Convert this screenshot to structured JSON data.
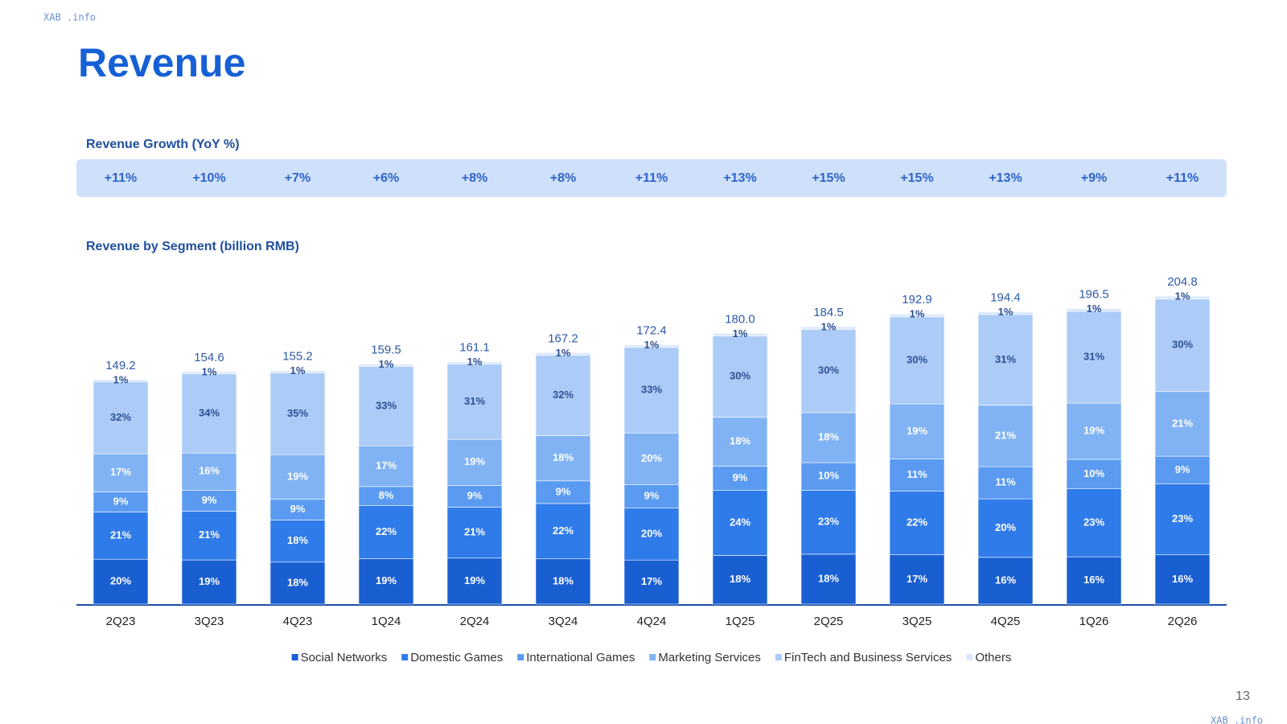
{
  "watermark": "XAB .info",
  "title": "Revenue",
  "page_number": "13",
  "growth": {
    "title": "Revenue Growth (YoY %)",
    "values": [
      "+11%",
      "+10%",
      "+7%",
      "+6%",
      "+8%",
      "+8%",
      "+11%",
      "+13%",
      "+15%",
      "+15%",
      "+13%",
      "+9%",
      "+11%"
    ]
  },
  "chart_data": {
    "type": "stacked_bar",
    "title": "Revenue by Segment (billion RMB)",
    "categories": [
      "2Q23",
      "3Q23",
      "4Q23",
      "1Q24",
      "2Q24",
      "3Q24",
      "4Q24",
      "1Q25",
      "2Q25",
      "3Q25",
      "4Q25",
      "1Q26",
      "2Q26"
    ],
    "totals": {
      "values": [
        149.2,
        154.6,
        155.2,
        159.5,
        161.1,
        167.2,
        172.4,
        180.0,
        184.5,
        192.9,
        194.4,
        196.5,
        204.8
      ],
      "value_labels": [
        "149.2",
        "154.6",
        "155.2",
        "159.5",
        "161.1",
        "167.2",
        "172.4",
        "180.0",
        "184.5",
        "192.9",
        "194.4",
        "196.5",
        "204.8"
      ]
    },
    "series": [
      {
        "name": "Social Networks",
        "color": "#1a5fd2",
        "values": [
          20,
          19,
          18,
          19,
          19,
          18,
          17,
          18,
          18,
          17,
          16,
          16,
          16
        ],
        "value_labels": [
          "20%",
          "19%",
          "18%",
          "19%",
          "19%",
          "18%",
          "17%",
          "18%",
          "18%",
          "17%",
          "16%",
          "16%",
          "16%"
        ]
      },
      {
        "name": "Domestic Games",
        "color": "#2f7be9",
        "values": [
          21,
          21,
          18,
          22,
          21,
          22,
          20,
          24,
          23,
          22,
          20,
          23,
          23
        ],
        "value_labels": [
          "21%",
          "21%",
          "18%",
          "22%",
          "21%",
          "22%",
          "20%",
          "24%",
          "23%",
          "22%",
          "20%",
          "23%",
          "23%"
        ]
      },
      {
        "name": "International Games",
        "color": "#5a9bf1",
        "values": [
          9,
          9,
          9,
          8,
          9,
          9,
          9,
          9,
          10,
          11,
          11,
          10,
          9
        ],
        "value_labels": [
          "9%",
          "9%",
          "9%",
          "8%",
          "9%",
          "9%",
          "9%",
          "9%",
          "10%",
          "11%",
          "11%",
          "10%",
          "9%"
        ]
      },
      {
        "name": "Marketing Services",
        "color": "#81b3f4",
        "values": [
          17,
          16,
          19,
          17,
          19,
          18,
          20,
          18,
          18,
          19,
          21,
          19,
          21
        ],
        "value_labels": [
          "17%",
          "16%",
          "19%",
          "17%",
          "19%",
          "18%",
          "20%",
          "18%",
          "18%",
          "19%",
          "21%",
          "19%",
          "21%"
        ]
      },
      {
        "name": "FinTech and Business Services",
        "color": "#acccf7",
        "values": [
          32,
          34,
          35,
          33,
          31,
          32,
          33,
          30,
          30,
          30,
          31,
          31,
          30
        ],
        "value_labels": [
          "32%",
          "34%",
          "35%",
          "33%",
          "31%",
          "32%",
          "33%",
          "30%",
          "30%",
          "30%",
          "31%",
          "31%",
          "30%"
        ]
      },
      {
        "name": "Others",
        "color": "#dce9fc",
        "values": [
          1,
          1,
          1,
          1,
          1,
          1,
          1,
          1,
          1,
          1,
          1,
          1,
          1
        ],
        "value_labels": [
          "1%",
          "1%",
          "1%",
          "1%",
          "1%",
          "1%",
          "1%",
          "1%",
          "1%",
          "1%",
          "1%",
          "1%",
          "1%"
        ]
      }
    ]
  }
}
